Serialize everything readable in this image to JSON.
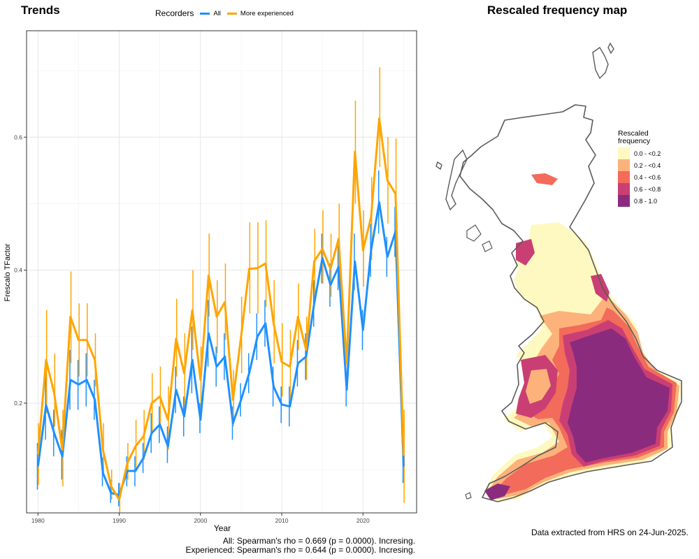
{
  "trends_panel": {
    "title": "Trends",
    "legend_title": "Recorders",
    "legend_items": [
      {
        "label": "All",
        "color": "#1E90FF"
      },
      {
        "label": "More experienced",
        "color": "#FFA500"
      }
    ],
    "stats_lines": [
      "All: Spearman's rho = 0.669 (p = 0.0000). Incresing.",
      "Experienced: Spearman's rho = 0.644 (p = 0.0000). Incresing."
    ]
  },
  "map_panel": {
    "title": "Rescaled frequency map",
    "legend_title_lines": [
      "Rescaled",
      "frequency"
    ],
    "legend_items": [
      {
        "label": "0.0 - <0.2",
        "color": "#FEF9C0"
      },
      {
        "label": "0.2 - <0.4",
        "color": "#FCB27A"
      },
      {
        "label": "0.4 - <0.6",
        "color": "#F26B5B"
      },
      {
        "label": "0.6 - <0.8",
        "color": "#CA3F73"
      },
      {
        "label": "0.8 - 1.0",
        "color": "#8B2B7E"
      }
    ],
    "footer": "Data extracted from HRS on 24-Jun-2025."
  },
  "chart_data": {
    "type": "line",
    "xlabel": "Year",
    "ylabel": "Frescalo TFactor",
    "xlim": [
      1978.6,
      2026.6
    ],
    "ylim": [
      0.035,
      0.76
    ],
    "x_ticks": [
      1980,
      1990,
      2000,
      2010,
      2020
    ],
    "y_ticks": [
      0.2,
      0.4,
      0.6
    ],
    "grid": true,
    "legend_position": "top",
    "x": [
      1980,
      1981,
      1982,
      1983,
      1984,
      1985,
      1986,
      1987,
      1988,
      1989,
      1990,
      1991,
      1992,
      1993,
      1994,
      1995,
      1996,
      1997,
      1998,
      1999,
      2000,
      2001,
      2002,
      2003,
      2004,
      2005,
      2006,
      2007,
      2008,
      2009,
      2010,
      2011,
      2012,
      2013,
      2014,
      2015,
      2016,
      2017,
      2018,
      2019,
      2020,
      2021,
      2022,
      2023,
      2024,
      2025
    ],
    "series": [
      {
        "name": "All",
        "color": "#1E90FF",
        "values": [
          0.105,
          0.197,
          0.155,
          0.12,
          0.235,
          0.228,
          0.235,
          0.205,
          0.095,
          0.065,
          0.062,
          0.098,
          0.098,
          0.118,
          0.155,
          0.168,
          0.135,
          0.22,
          0.18,
          0.265,
          0.175,
          0.305,
          0.255,
          0.27,
          0.17,
          0.205,
          0.245,
          0.3,
          0.32,
          0.225,
          0.198,
          0.195,
          0.26,
          0.27,
          0.35,
          0.418,
          0.378,
          0.405,
          0.22,
          0.413,
          0.31,
          0.43,
          0.502,
          0.42,
          0.458,
          0.105
        ],
        "err_low": [
          0.07,
          0.145,
          0.12,
          0.085,
          0.19,
          0.19,
          0.195,
          0.175,
          0.075,
          0.05,
          0.045,
          0.075,
          0.075,
          0.095,
          0.125,
          0.14,
          0.11,
          0.185,
          0.15,
          0.215,
          0.155,
          0.255,
          0.225,
          0.235,
          0.145,
          0.18,
          0.215,
          0.265,
          0.285,
          0.195,
          0.17,
          0.165,
          0.225,
          0.235,
          0.315,
          0.38,
          0.345,
          0.37,
          0.195,
          0.37,
          0.28,
          0.39,
          0.455,
          0.39,
          0.42,
          0.08
        ],
        "err_high": [
          0.14,
          0.25,
          0.19,
          0.16,
          0.28,
          0.265,
          0.275,
          0.235,
          0.118,
          0.085,
          0.08,
          0.12,
          0.12,
          0.14,
          0.185,
          0.195,
          0.165,
          0.255,
          0.21,
          0.315,
          0.2,
          0.355,
          0.285,
          0.305,
          0.195,
          0.23,
          0.275,
          0.335,
          0.355,
          0.255,
          0.225,
          0.225,
          0.295,
          0.305,
          0.385,
          0.455,
          0.41,
          0.44,
          0.245,
          0.455,
          0.34,
          0.47,
          0.55,
          0.45,
          0.495,
          0.13
        ]
      },
      {
        "name": "More experienced",
        "color": "#FFA500",
        "values": [
          0.123,
          0.265,
          0.215,
          0.13,
          0.33,
          0.295,
          0.295,
          0.265,
          0.13,
          0.075,
          0.055,
          0.11,
          0.135,
          0.15,
          0.2,
          0.21,
          0.175,
          0.297,
          0.245,
          0.34,
          0.235,
          0.392,
          0.33,
          0.352,
          0.205,
          0.3,
          0.402,
          0.403,
          0.41,
          0.32,
          0.262,
          0.255,
          0.33,
          0.28,
          0.413,
          0.432,
          0.402,
          0.447,
          0.26,
          0.578,
          0.43,
          0.48,
          0.628,
          0.535,
          0.515,
          0.121
        ],
        "err_low": [
          0.077,
          0.185,
          0.165,
          0.075,
          0.26,
          0.24,
          0.24,
          0.225,
          0.095,
          0.055,
          0.035,
          0.085,
          0.1,
          0.115,
          0.155,
          0.165,
          0.13,
          0.24,
          0.185,
          0.28,
          0.19,
          0.33,
          0.275,
          0.295,
          0.165,
          0.245,
          0.335,
          0.335,
          0.345,
          0.26,
          0.21,
          0.205,
          0.28,
          0.235,
          0.36,
          0.38,
          0.36,
          0.395,
          0.235,
          0.5,
          0.375,
          0.415,
          0.555,
          0.47,
          0.43,
          0.05
        ],
        "err_high": [
          0.17,
          0.34,
          0.275,
          0.19,
          0.398,
          0.35,
          0.35,
          0.305,
          0.17,
          0.1,
          0.08,
          0.14,
          0.175,
          0.19,
          0.245,
          0.255,
          0.225,
          0.357,
          0.305,
          0.4,
          0.285,
          0.455,
          0.385,
          0.41,
          0.25,
          0.36,
          0.472,
          0.472,
          0.475,
          0.385,
          0.32,
          0.31,
          0.38,
          0.33,
          0.462,
          0.49,
          0.455,
          0.5,
          0.285,
          0.655,
          0.49,
          0.54,
          0.705,
          0.6,
          0.598,
          0.19
        ]
      }
    ]
  }
}
